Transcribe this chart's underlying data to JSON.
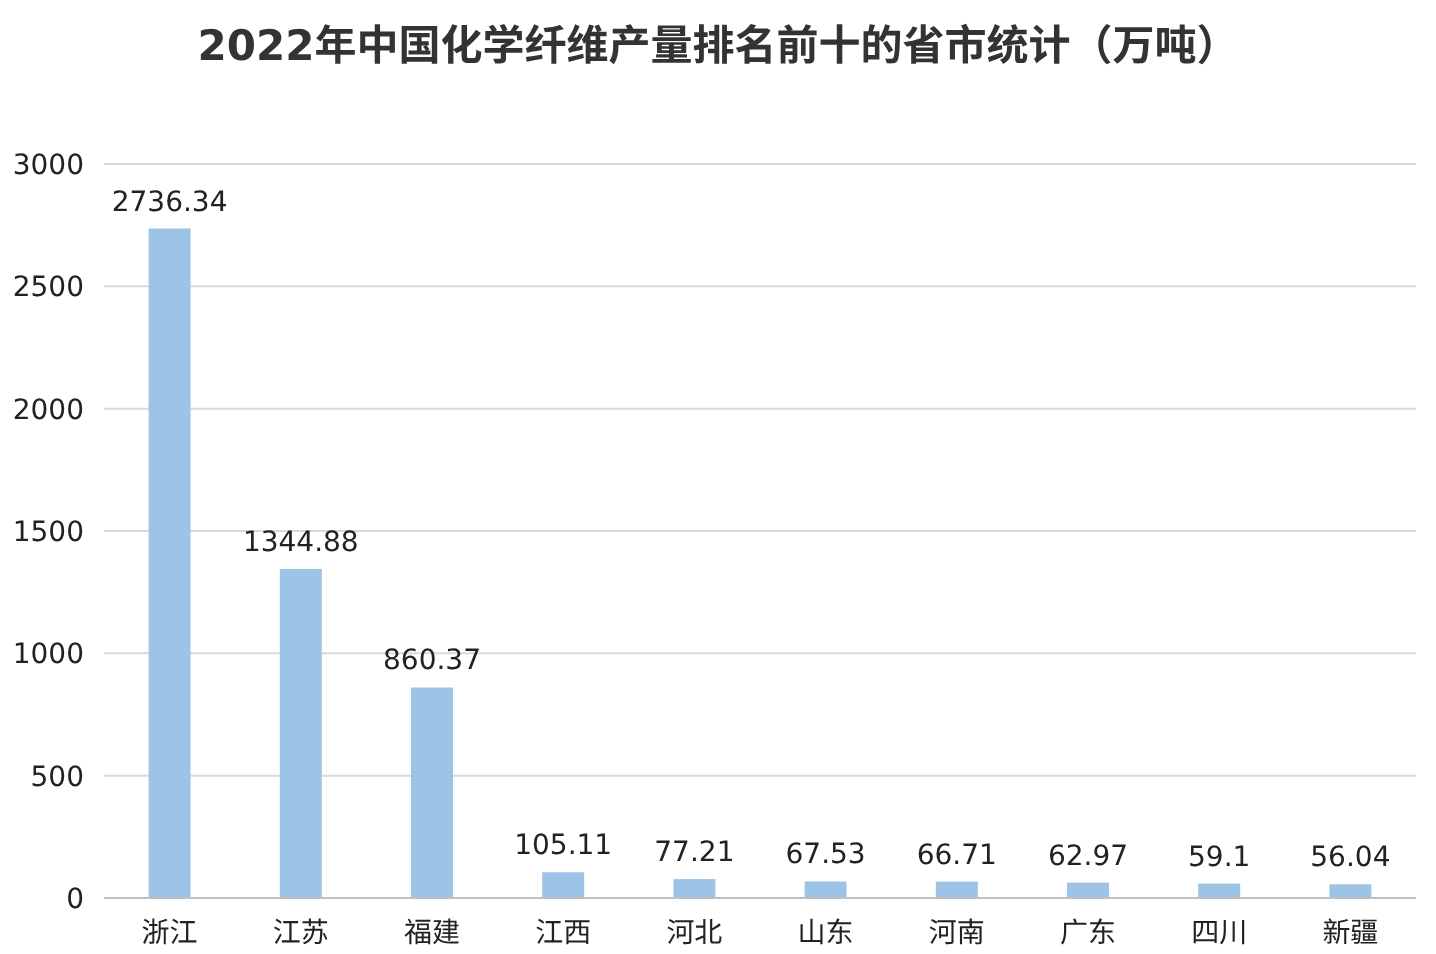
{
  "chart_data": {
    "type": "bar",
    "title": "2022年中国化学纤维产量排名前十的省市统计（万吨）",
    "categories": [
      "浙江",
      "江苏",
      "福建",
      "江西",
      "河北",
      "山东",
      "河南",
      "广东",
      "四川",
      "新疆"
    ],
    "values": [
      2736.34,
      1344.88,
      860.37,
      105.11,
      77.21,
      67.53,
      66.71,
      62.97,
      59.1,
      56.04
    ],
    "color": "#9dc3e6",
    "ylim": [
      0,
      3000
    ],
    "yticks": [
      0,
      500,
      1000,
      1500,
      2000,
      2500,
      3000
    ],
    "grid": "y",
    "data_labels": true
  }
}
